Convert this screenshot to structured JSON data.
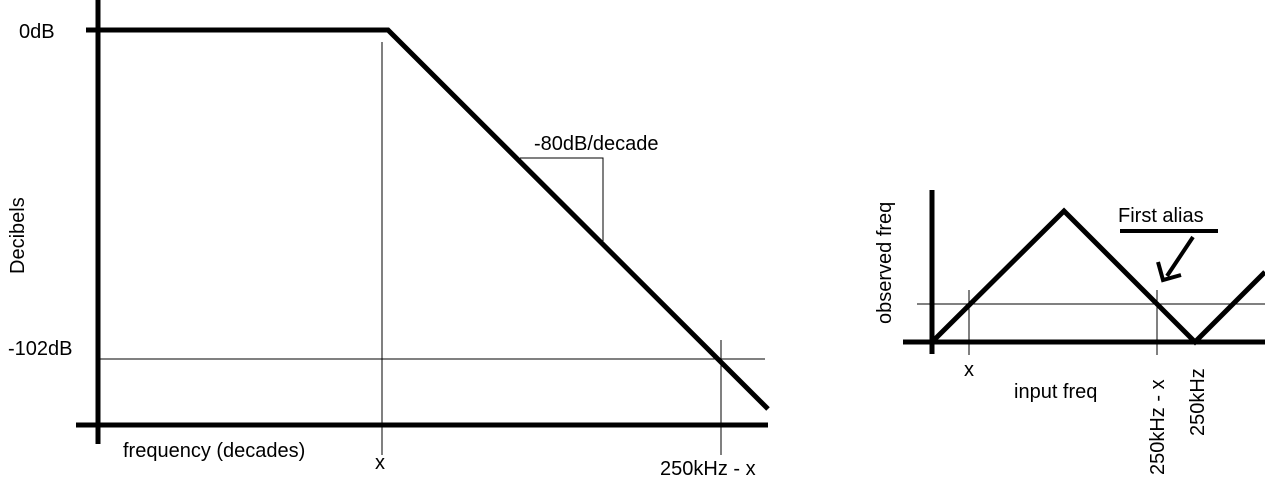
{
  "left_diagram": {
    "y_axis_label": "Decibels",
    "x_axis_label": "frequency (decades)",
    "level_top": "0dB",
    "level_bottom": "-102dB",
    "slope_label": "-80dB/decade",
    "tick_corner": "x",
    "tick_stop": "250kHz - x"
  },
  "right_diagram": {
    "y_axis_label": "observed freq",
    "x_axis_label": "input freq",
    "tick_x": "x",
    "tick_alias": "250kHz - x",
    "tick_nyquist": "250kHz",
    "alias_annotation": "First alias"
  },
  "colors": {
    "ink": "#000000",
    "background": "#ffffff"
  }
}
